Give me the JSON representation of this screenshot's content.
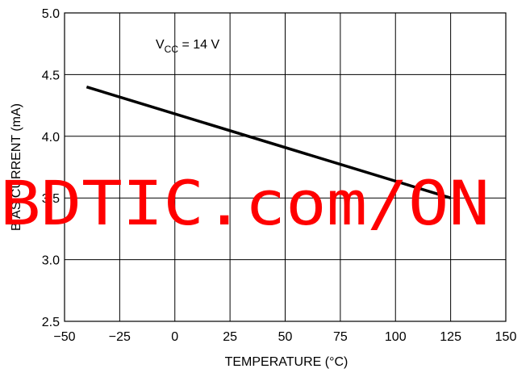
{
  "chart_data": {
    "type": "line",
    "title": "",
    "xlabel": "TEMPERATURE (°C)",
    "ylabel": "BIAS CURRENT (mA)",
    "xlim": [
      -50,
      150
    ],
    "ylim": [
      2.5,
      5.0
    ],
    "x_ticks": [
      -50,
      -25,
      0,
      25,
      50,
      75,
      100,
      125,
      150
    ],
    "x_tick_labels": [
      "−50",
      "−25",
      "0",
      "25",
      "50",
      "75",
      "100",
      "125",
      "150"
    ],
    "y_ticks": [
      2.5,
      3.0,
      3.5,
      4.0,
      4.5,
      5.0
    ],
    "y_tick_labels": [
      "2.5",
      "3.0",
      "3.5",
      "4.0",
      "4.5",
      "5.0"
    ],
    "grid": true,
    "series": [
      {
        "x": [
          -40,
          125
        ],
        "y": [
          4.4,
          3.5
        ]
      }
    ],
    "annotations": [
      {
        "main": "V",
        "sub": "CC",
        "rest": " = 14 V"
      }
    ]
  },
  "watermark": {
    "text": "BDTIC.com/ON",
    "color": "#ff0000"
  }
}
